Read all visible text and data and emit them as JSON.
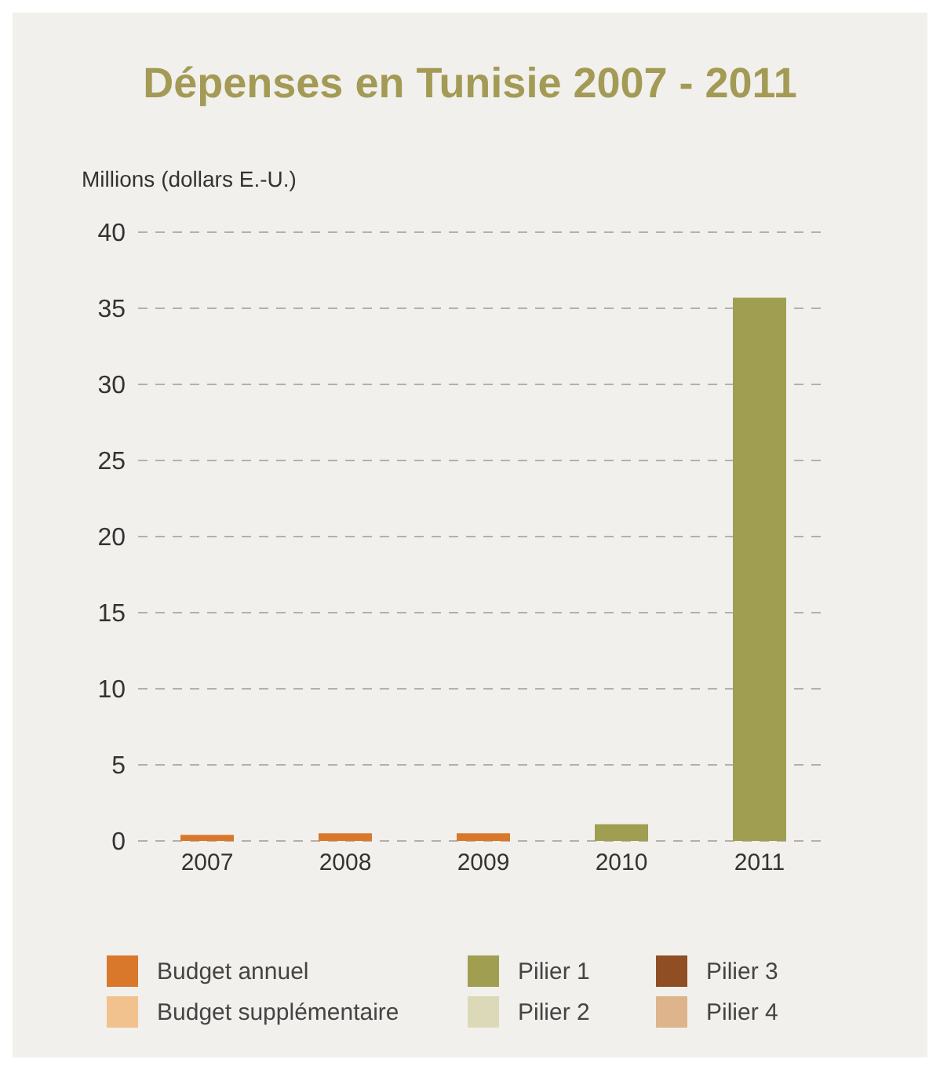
{
  "chart_data": {
    "type": "bar",
    "title": "Dépenses en Tunisie 2007 - 2011",
    "ylabel": "Millions (dollars E.-U.)",
    "categories": [
      "2007",
      "2008",
      "2009",
      "2010",
      "2011"
    ],
    "stacked": true,
    "series": [
      {
        "name": "Budget annuel",
        "color": "#d9782a",
        "values": [
          0.4,
          0.5,
          0.5,
          null,
          null
        ]
      },
      {
        "name": "Budget supplémentaire",
        "color": "#f2c28e",
        "values": [
          null,
          null,
          null,
          null,
          null
        ]
      },
      {
        "name": "Pilier 1",
        "color": "#a09e50",
        "values": [
          null,
          null,
          null,
          1.1,
          35.7
        ]
      },
      {
        "name": "Pilier 2",
        "color": "#dcd9b8",
        "values": [
          null,
          null,
          null,
          null,
          null
        ]
      },
      {
        "name": "Pilier 3",
        "color": "#8f4e24",
        "values": [
          null,
          null,
          null,
          null,
          null
        ]
      },
      {
        "name": "Pilier 4",
        "color": "#ddb48c",
        "values": [
          null,
          null,
          null,
          null,
          null
        ]
      }
    ],
    "ylim": [
      0,
      40
    ],
    "yticks": [
      0,
      5,
      10,
      15,
      20,
      25,
      30,
      35,
      40
    ],
    "grid": "y",
    "legend": "bottom"
  }
}
